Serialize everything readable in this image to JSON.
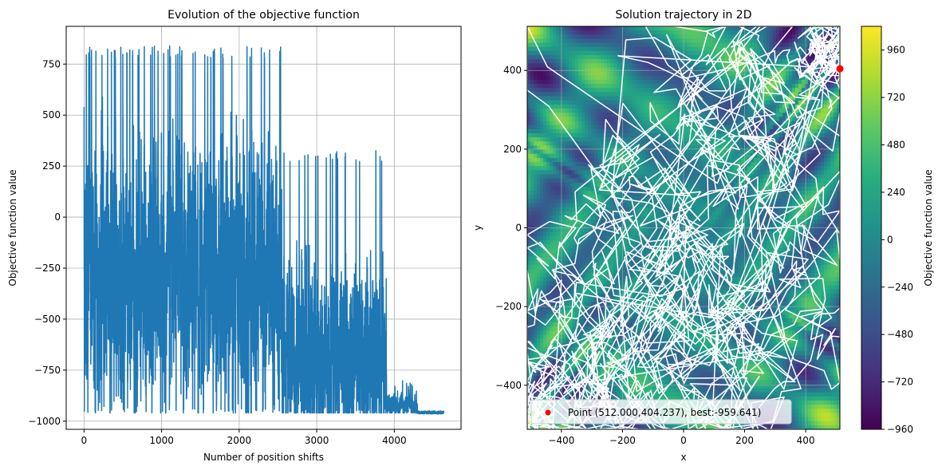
{
  "chart_data": [
    {
      "type": "line",
      "title": "Evolution of the objective function",
      "xlabel": "Number of position shifts",
      "ylabel": "Objective function value",
      "xlim": [
        -230,
        4860
      ],
      "ylim": [
        -1040,
        935
      ],
      "x_ticks": [
        0,
        1000,
        2000,
        3000,
        4000
      ],
      "y_ticks": [
        -1000,
        -750,
        -500,
        -250,
        0,
        250,
        500,
        750
      ],
      "grid": true,
      "series_color": "#1f77b4",
      "n_points": 4640,
      "final_value": -959.641,
      "phases": [
        {
          "x_start": 0,
          "x_end": 2550,
          "low": -960,
          "high": 840
        },
        {
          "x_start": 2550,
          "x_end": 3900,
          "low": -960,
          "high": 330
        },
        {
          "x_start": 3900,
          "x_end": 4300,
          "low": -960,
          "high": -800
        },
        {
          "x_start": 4300,
          "x_end": 4640,
          "low": -965,
          "high": -950
        }
      ]
    },
    {
      "type": "heatmap",
      "title": "Solution trajectory in 2D",
      "xlabel": "x",
      "ylabel": "y",
      "xlim": [
        -512,
        512
      ],
      "ylim": [
        -512,
        512
      ],
      "x_ticks": [
        -400,
        -200,
        0,
        200,
        400
      ],
      "y_ticks": [
        -400,
        -200,
        0,
        200,
        400
      ],
      "grid": true,
      "colormap": "viridis",
      "colorbar_label": "Objective function value",
      "colorbar_ticks": [
        -960,
        -720,
        -480,
        -240,
        0,
        240,
        480,
        720,
        960
      ],
      "colorbar_range": [
        -960,
        1080
      ],
      "trajectory_color": "#ffffff",
      "best_point": {
        "x": 512.0,
        "y": 404.237,
        "value": -959.641,
        "color": "#ff0000"
      },
      "legend_label": "Point (512.000,404.237), best:-959.641)",
      "legend_position": "lower-left"
    }
  ]
}
